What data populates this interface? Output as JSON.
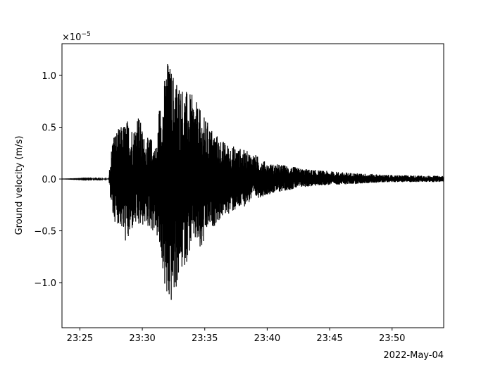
{
  "chart_data": {
    "type": "line",
    "title": "",
    "xlabel": "",
    "x_date_label": "2022-May-04",
    "ylabel": "Ground velocity (m/s)",
    "y_offset_label": "×10",
    "y_offset_exponent": "−5",
    "y_scale": 1e-05,
    "xlim": [
      "23:23:34",
      "23:54:08"
    ],
    "ylim": [
      -1.435,
      1.306
    ],
    "x_ticks": [
      "23:25",
      "23:30",
      "23:35",
      "23:40",
      "23:45",
      "23:50"
    ],
    "y_ticks": [
      {
        "value": 1.0,
        "label": "1.0"
      },
      {
        "value": 0.5,
        "label": "0.5"
      },
      {
        "value": 0.0,
        "label": "0.0"
      },
      {
        "value": -0.5,
        "label": "−0.5"
      },
      {
        "value": -1.0,
        "label": "−1.0"
      }
    ],
    "grid": false,
    "line_color": "#000000",
    "series": [
      {
        "envelope_columns": [
          "time",
          "max",
          "min"
        ],
        "envelope": [
          [
            "23:23:34",
            0.0,
            0.0
          ],
          [
            "23:27:20",
            0.005,
            -0.005
          ],
          [
            "23:27:22",
            0.1,
            -0.1
          ],
          [
            "23:27:39",
            0.45,
            -0.4
          ],
          [
            "23:28:13",
            0.5,
            -0.45
          ],
          [
            "23:28:47",
            0.58,
            -0.67
          ],
          [
            "23:29:20",
            0.5,
            -0.45
          ],
          [
            "23:29:37",
            0.68,
            -0.5
          ],
          [
            "23:30:11",
            0.4,
            -0.45
          ],
          [
            "23:30:45",
            0.4,
            -0.5
          ],
          [
            "23:31:09",
            0.3,
            -0.55
          ],
          [
            "23:31:19",
            0.7,
            -0.7
          ],
          [
            "23:31:36",
            0.8,
            -0.85
          ],
          [
            "23:31:59",
            1.17,
            -1.3
          ],
          [
            "23:32:26",
            1.05,
            -1.2
          ],
          [
            "23:33:00",
            0.95,
            -0.95
          ],
          [
            "23:33:34",
            0.85,
            -0.8
          ],
          [
            "23:34:08",
            0.8,
            -0.6
          ],
          [
            "23:34:42",
            0.65,
            -0.75
          ],
          [
            "23:35:16",
            0.55,
            -0.5
          ],
          [
            "23:35:49",
            0.45,
            -0.45
          ],
          [
            "23:36:40",
            0.35,
            -0.35
          ],
          [
            "23:37:48",
            0.3,
            -0.3
          ],
          [
            "23:38:55",
            0.25,
            -0.2
          ],
          [
            "23:40:03",
            0.15,
            -0.15
          ],
          [
            "23:41:11",
            0.14,
            -0.12
          ],
          [
            "23:42:52",
            0.1,
            -0.08
          ],
          [
            "23:44:34",
            0.08,
            -0.06
          ],
          [
            "23:46:49",
            0.06,
            -0.05
          ],
          [
            "23:49:38",
            0.04,
            -0.03
          ],
          [
            "23:54:08",
            0.03,
            -0.03
          ]
        ]
      }
    ]
  }
}
